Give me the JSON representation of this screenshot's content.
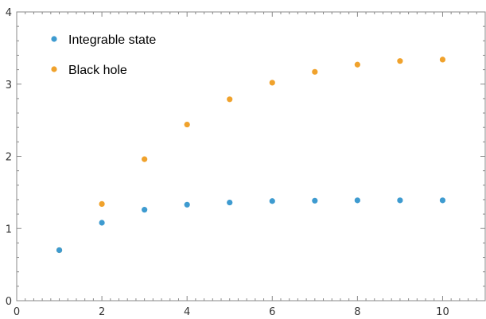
{
  "chart_data": {
    "type": "scatter",
    "xlim": [
      0,
      11
    ],
    "ylim": [
      0,
      4
    ],
    "x_ticks": [
      "0",
      "2",
      "4",
      "6",
      "8",
      "10"
    ],
    "y_ticks": [
      "0",
      "1",
      "2",
      "3",
      "4"
    ],
    "grid": false,
    "legend_position": "top-left",
    "series": [
      {
        "name": "Integrable state",
        "color": "#3e9bd0",
        "x": [
          1,
          2,
          3,
          4,
          5,
          6,
          7,
          8,
          9,
          10
        ],
        "y": [
          0.7,
          1.08,
          1.26,
          1.33,
          1.36,
          1.38,
          1.385,
          1.39,
          1.39,
          1.39
        ]
      },
      {
        "name": "Black hole",
        "color": "#f0a22c",
        "x": [
          1,
          2,
          3,
          4,
          5,
          6,
          7,
          8,
          9,
          10
        ],
        "y": [
          0.7,
          1.34,
          1.96,
          2.44,
          2.79,
          3.02,
          3.17,
          3.27,
          3.32,
          3.34
        ]
      }
    ]
  }
}
